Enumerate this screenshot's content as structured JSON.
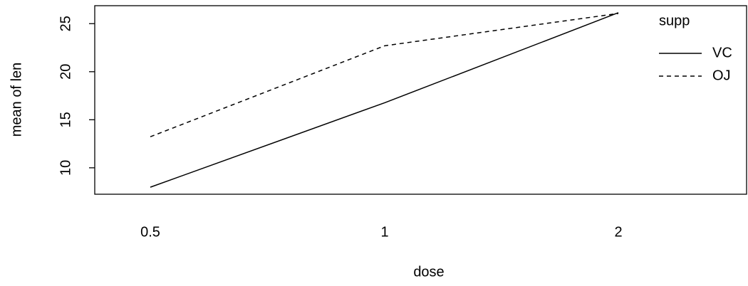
{
  "chart_data": {
    "type": "line",
    "xlabel": "dose",
    "ylabel": "mean of  len",
    "categories": [
      "0.5",
      "1",
      "2"
    ],
    "series": [
      {
        "name": "VC",
        "color": "#000000",
        "dash": "solid",
        "values": [
          7.98,
          16.77,
          26.14
        ]
      },
      {
        "name": "OJ",
        "color": "#000000",
        "dash": "dashed",
        "values": [
          13.23,
          22.7,
          26.06
        ]
      }
    ],
    "legend_title": "supp",
    "legend": "top-right",
    "ylim": [
      7.25,
      26.87
    ],
    "yticks": [
      10,
      15,
      20,
      25
    ]
  }
}
